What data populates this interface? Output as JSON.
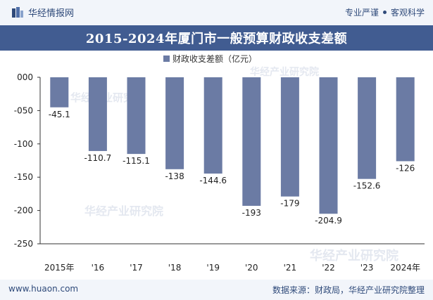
{
  "header": {
    "brand": "华经情报网",
    "tagline_left": "专业严谨",
    "tagline_right": "客观科学"
  },
  "title": "2015-2024年厦门市一般预算财政收支差额",
  "watermark": "华经产业研究院",
  "footer": {
    "site": "www.huaon.com",
    "source": "数据来源：财政局，华经产业研究院整理"
  },
  "colors": {
    "bar": "#6b7ba4",
    "title_bg": "#415c91",
    "header_bg": "#f2f5fa",
    "text_dark": "#2f4a7a"
  },
  "chart_data": {
    "type": "bar",
    "categories": [
      "2015年",
      "'16",
      "'17",
      "'18",
      "'19",
      "'20",
      "'21",
      "'22",
      "'23",
      "2024年"
    ],
    "series": [
      {
        "name": "财政收支差额（亿元）",
        "values": [
          -45.1,
          -110.7,
          -115.1,
          -138,
          -144.6,
          -193,
          -179,
          -204.9,
          -152.6,
          -126
        ]
      }
    ],
    "value_labels": [
      "-45.1",
      "-110.7",
      "-115.1",
      "-138",
      "-144.6",
      "-193",
      "-179",
      "-204.9",
      "-152.6",
      "-126"
    ],
    "ylim": [
      -250,
      0
    ],
    "yticks": [
      0,
      -50,
      -100,
      -150,
      -200,
      -250
    ],
    "ytick_labels": [
      "000",
      "-050",
      "-100",
      "-150",
      "-200",
      "-250"
    ],
    "legend": "top-center",
    "grid": false
  }
}
